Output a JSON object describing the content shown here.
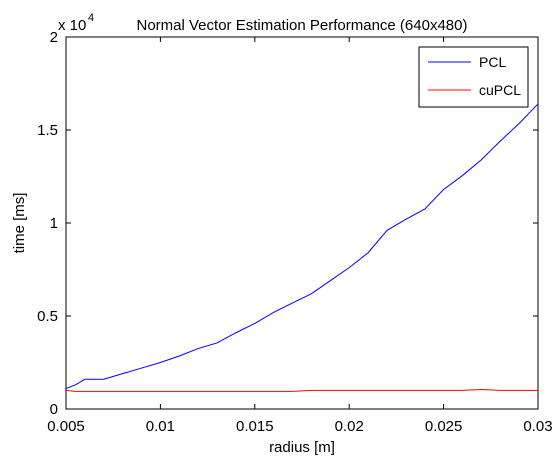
{
  "chart_data": {
    "type": "line",
    "title": "Normal Vector Estimation Performance (640x480)",
    "xlabel": "radius [m]",
    "ylabel": "time [ms]",
    "y_exponent_label": {
      "base": "x 10",
      "exponent": "4"
    },
    "xlim": [
      0.005,
      0.03
    ],
    "ylim": [
      0,
      2
    ],
    "xticks": [
      0.005,
      0.01,
      0.015,
      0.02,
      0.025,
      0.03
    ],
    "xtick_labels": [
      "0.005",
      "0.01",
      "0.015",
      "0.02",
      "0.025",
      "0.03"
    ],
    "yticks": [
      0,
      0.5,
      1,
      1.5,
      2
    ],
    "ytick_labels": [
      "0",
      "0.5",
      "1",
      "1.5",
      "2"
    ],
    "grid": false,
    "legend_position": "top-right",
    "series": [
      {
        "name": "PCL",
        "color": "#0000ff",
        "x": [
          0.005,
          0.0055,
          0.006,
          0.007,
          0.008,
          0.009,
          0.01,
          0.011,
          0.012,
          0.013,
          0.014,
          0.015,
          0.016,
          0.017,
          0.018,
          0.019,
          0.02,
          0.021,
          0.022,
          0.023,
          0.024,
          0.025,
          0.026,
          0.027,
          0.028,
          0.029,
          0.03
        ],
        "y": [
          0.11,
          0.13,
          0.16,
          0.16,
          0.19,
          0.22,
          0.25,
          0.285,
          0.325,
          0.355,
          0.41,
          0.46,
          0.52,
          0.57,
          0.62,
          0.69,
          0.76,
          0.84,
          0.96,
          1.02,
          1.075,
          1.18,
          1.255,
          1.34,
          1.44,
          1.535,
          1.64
        ]
      },
      {
        "name": "cuPCL",
        "color": "#ff0000",
        "x": [
          0.005,
          0.0055,
          0.006,
          0.007,
          0.008,
          0.009,
          0.01,
          0.011,
          0.012,
          0.013,
          0.014,
          0.015,
          0.016,
          0.017,
          0.018,
          0.019,
          0.02,
          0.021,
          0.022,
          0.023,
          0.024,
          0.025,
          0.026,
          0.027,
          0.028,
          0.029,
          0.03
        ],
        "y": [
          0.1,
          0.095,
          0.095,
          0.095,
          0.095,
          0.095,
          0.095,
          0.095,
          0.095,
          0.095,
          0.095,
          0.095,
          0.095,
          0.095,
          0.1,
          0.1,
          0.1,
          0.1,
          0.1,
          0.1,
          0.1,
          0.1,
          0.1,
          0.105,
          0.1,
          0.1,
          0.1
        ]
      }
    ]
  }
}
